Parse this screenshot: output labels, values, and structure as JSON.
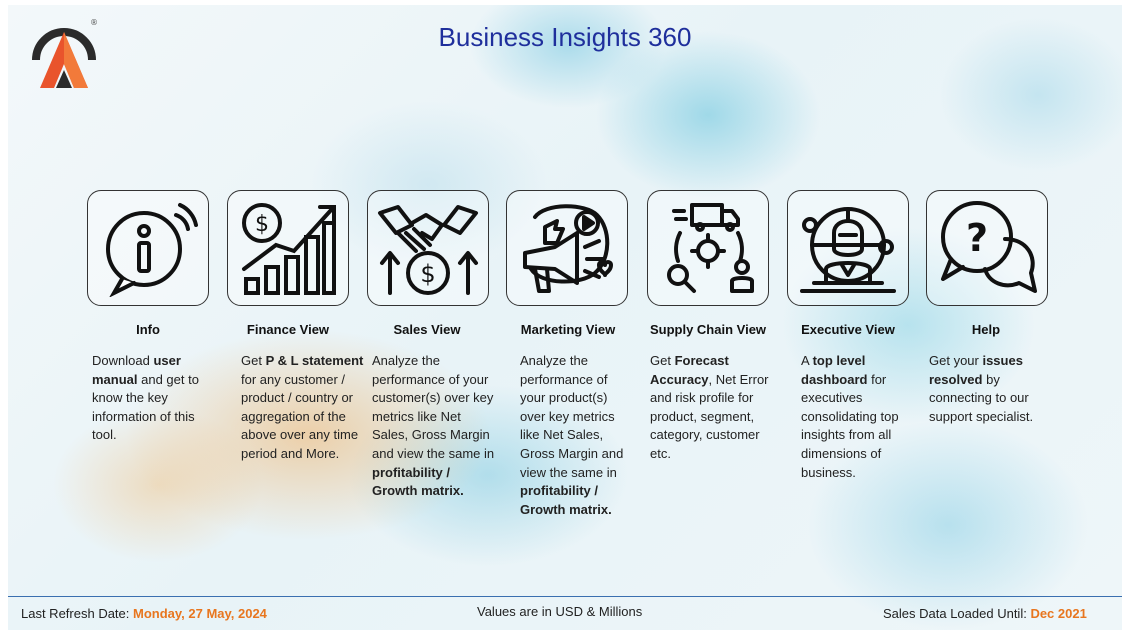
{
  "title": "Business Insights 360",
  "logo": {
    "mark": "®"
  },
  "cards": [
    {
      "label": "Info",
      "icon": "info-icon",
      "desc": [
        [
          "Download ",
          ""
        ],
        [
          "user manual",
          "b"
        ],
        [
          " and get to know the key information of this tool.",
          ""
        ]
      ]
    },
    {
      "label": "Finance View",
      "icon": "finance-chart-icon",
      "desc": [
        [
          "Get ",
          ""
        ],
        [
          " P & L statement",
          "b"
        ],
        [
          " for any customer / product / country or aggregation of the above over any time period and More.",
          ""
        ]
      ]
    },
    {
      "label": "Sales View",
      "icon": "handshake-dollar-icon",
      "desc": [
        [
          "Analyze the performance of your customer(s) over key metrics like Net Sales, Gross Margin and view the same in ",
          ""
        ],
        [
          "profitability / Growth matrix.",
          "b"
        ]
      ]
    },
    {
      "label": "Marketing View",
      "icon": "megaphone-icon",
      "desc": [
        [
          "Analyze the performance of your product(s) over key metrics like Net Sales, Gross Margin and view the same in ",
          ""
        ],
        [
          "profitability / Growth matrix.",
          "b"
        ]
      ]
    },
    {
      "label": "Supply Chain View",
      "icon": "supply-chain-icon",
      "desc": [
        [
          "Get ",
          ""
        ],
        [
          "Forecast Accuracy",
          "b"
        ],
        [
          ", Net Error and risk profile for product, segment, category, customer etc.",
          ""
        ]
      ]
    },
    {
      "label": "Executive View",
      "icon": "executive-globe-icon",
      "desc": [
        [
          "A ",
          ""
        ],
        [
          "top level dashboard",
          "b"
        ],
        [
          " for executives consolidating top insights from all dimensions of business.",
          ""
        ]
      ]
    },
    {
      "label": "Help",
      "icon": "help-chat-icon",
      "desc": [
        [
          "Get your ",
          ""
        ],
        [
          "issues resolved",
          "b"
        ],
        [
          " by connecting to our support specialist.",
          ""
        ]
      ]
    }
  ],
  "footer": {
    "refresh_label": "Last Refresh Date: ",
    "refresh_value": "Monday, 27 May, 2024",
    "units": "Values are in USD & Millions",
    "loaded_label": "Sales Data Loaded Until: ",
    "loaded_value": "Dec 2021"
  },
  "colors": {
    "title": "#1f2f9c",
    "accent": "#e8761f",
    "footer_line": "#3a6fb0"
  }
}
